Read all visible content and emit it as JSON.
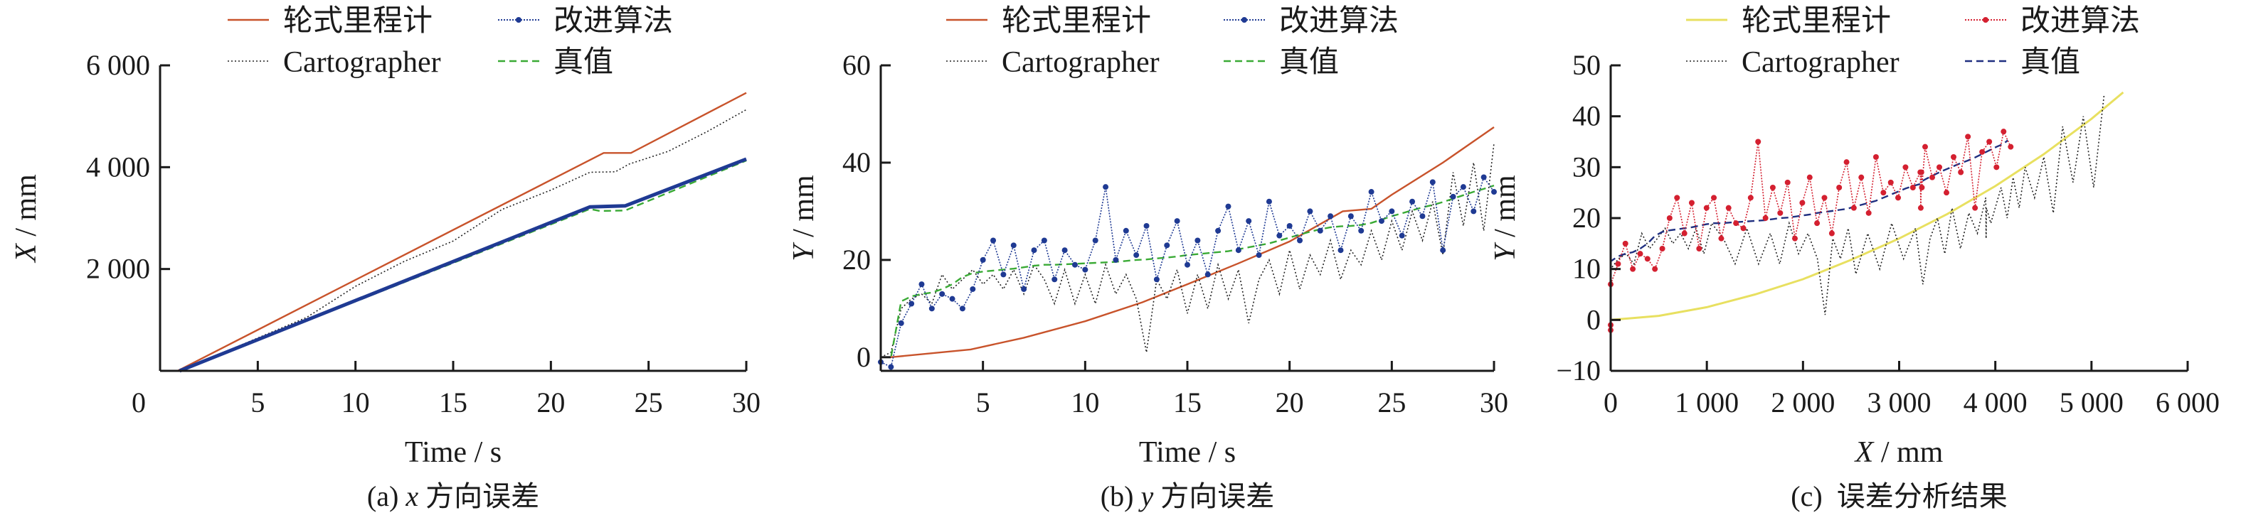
{
  "colors": {
    "odometry": "#c8532b",
    "odometry_c": "#e8e060",
    "improved": "#1f3a93",
    "improved_c": "#d42030",
    "cartographer": "#222222",
    "truth": "#3aaa35",
    "truth_c": "#1f2f80",
    "axis": "#1a1a1a"
  },
  "legend_labels": {
    "odometry": "轮式里程计",
    "improved": "改进算法",
    "cartographer": "Cartographer",
    "truth": "真值"
  },
  "chart_data": [
    {
      "id": "a",
      "type": "line",
      "caption_prefix": "(a)",
      "caption_var": "x",
      "caption_text": "方向误差",
      "xlabel": "Time / s",
      "ylabel_var": "X",
      "ylabel_unit": " / mm",
      "xlim": [
        0,
        30
      ],
      "ylim": [
        0,
        6000
      ],
      "grid": false,
      "legend": "top",
      "xticks": [
        {
          "v": 0,
          "label": "0"
        },
        {
          "v": 5,
          "label": "5"
        },
        {
          "v": 10,
          "label": "10"
        },
        {
          "v": 15,
          "label": "15"
        },
        {
          "v": 20,
          "label": "20"
        },
        {
          "v": 25,
          "label": "25"
        },
        {
          "v": 30,
          "label": "30"
        }
      ],
      "yticks": [
        {
          "v": 2000,
          "label": "2 000"
        },
        {
          "v": 4000,
          "label": "4 000"
        },
        {
          "v": 6000,
          "label": "6 000"
        }
      ],
      "series": [
        {
          "key": "odometry",
          "x": [
            0.9,
            22.7,
            24.1,
            30
          ],
          "y": [
            0,
            4280,
            4280,
            5460
          ]
        },
        {
          "key": "cartographer",
          "x": [
            1,
            7.5,
            10,
            12.5,
            15,
            17.5,
            20,
            22,
            23.3,
            24,
            26,
            28,
            30
          ],
          "y": [
            0,
            1050,
            1660,
            2150,
            2550,
            3170,
            3550,
            3900,
            3910,
            4060,
            4310,
            4700,
            5130
          ]
        },
        {
          "key": "truth",
          "x": [
            1,
            22,
            22.5,
            23.8,
            30
          ],
          "y": [
            0,
            3180,
            3140,
            3150,
            4130
          ]
        },
        {
          "key": "improved",
          "x": [
            1,
            22,
            23.8,
            30
          ],
          "y": [
            0,
            3220,
            3240,
            4160
          ]
        }
      ]
    },
    {
      "id": "b",
      "type": "line",
      "caption_prefix": "(b)",
      "caption_var": "y",
      "caption_text": "方向误差",
      "xlabel": "Time / s",
      "ylabel_var": "Y",
      "ylabel_unit": " / mm",
      "xlim": [
        0,
        30
      ],
      "ylim": [
        -2.8,
        60
      ],
      "grid": false,
      "legend": "top",
      "xticks": [
        {
          "v": 5,
          "label": "5"
        },
        {
          "v": 10,
          "label": "10"
        },
        {
          "v": 15,
          "label": "15"
        },
        {
          "v": 20,
          "label": "20"
        },
        {
          "v": 25,
          "label": "25"
        },
        {
          "v": 30,
          "label": "30"
        }
      ],
      "yticks": [
        {
          "v": 0,
          "label": "0"
        },
        {
          "v": 20,
          "label": "20"
        },
        {
          "v": 40,
          "label": "40"
        },
        {
          "v": 60,
          "label": "60"
        }
      ],
      "series": [
        {
          "key": "odometry",
          "x": [
            0,
            0.5,
            4.4,
            7,
            10,
            12.8,
            15,
            17.5,
            20,
            22.6,
            24,
            25,
            27.5,
            30
          ],
          "y": [
            0,
            0,
            1.6,
            4,
            7.4,
            11.3,
            15,
            19.3,
            23.8,
            30,
            30.5,
            33.4,
            40,
            47.3
          ]
        },
        {
          "key": "cartographer",
          "x": [
            0,
            0.5,
            1,
            1.5,
            2,
            2.5,
            3,
            3.5,
            4,
            4.5,
            5,
            5.5,
            6,
            6.5,
            7,
            7.5,
            8,
            8.5,
            9,
            9.5,
            10,
            10.5,
            11,
            11.5,
            12,
            12.5,
            13,
            13.5,
            14,
            14.5,
            15,
            15.5,
            16,
            16.5,
            17,
            17.5,
            18,
            18.5,
            19,
            19.5,
            20,
            20.5,
            21,
            21.5,
            22,
            22.5,
            23,
            23.5,
            24,
            24.5,
            25,
            25.5,
            26,
            26.5,
            27,
            27.5,
            28,
            28.5,
            29,
            29.5,
            30
          ],
          "y": [
            0,
            1,
            10,
            12,
            13,
            11,
            17,
            14,
            16,
            18,
            15,
            17,
            14,
            18,
            13,
            19,
            16,
            11,
            18,
            11,
            17,
            11,
            19,
            13,
            17,
            12,
            1,
            16,
            12,
            18,
            9,
            17,
            10,
            19,
            12,
            18,
            7,
            16,
            20,
            13,
            22,
            14,
            21,
            17,
            24,
            16,
            22,
            19,
            26,
            20,
            28,
            22,
            30,
            24,
            32,
            21,
            38,
            27,
            40,
            26,
            44
          ]
        },
        {
          "key": "truth",
          "x": [
            0,
            0.5,
            1,
            1.5,
            2,
            2.5,
            3,
            3.5,
            4,
            4.5,
            5,
            5.5,
            6,
            6.5,
            7,
            7.5,
            8,
            8.5,
            9,
            9.5,
            10,
            10.5,
            11,
            11.5,
            12,
            12.5,
            13,
            13.5,
            14,
            14.5,
            15,
            15.5,
            16,
            16.5,
            17,
            17.5,
            18,
            18.5,
            19,
            19.5,
            20,
            20.5,
            21,
            21.5,
            22,
            22.5,
            23,
            23.5,
            24,
            24.5,
            25,
            25.5,
            26,
            26.5,
            27,
            27.5,
            28,
            28.5,
            29,
            29.5,
            30
          ],
          "y": [
            0,
            0,
            11.5,
            12.5,
            13,
            13.3,
            14,
            15,
            16.5,
            17.3,
            17.6,
            17.8,
            18,
            18.2,
            18.5,
            18.8,
            19,
            19,
            19.1,
            19.2,
            19.3,
            19.4,
            19.5,
            19.6,
            19.8,
            20,
            20.1,
            20.3,
            20.5,
            20.7,
            21,
            21.2,
            21.4,
            21.6,
            21.8,
            22.2,
            22.6,
            23,
            23.4,
            24,
            24.6,
            25.2,
            25.8,
            26.3,
            26.7,
            26.9,
            27,
            27.2,
            27.6,
            28.3,
            29,
            29.6,
            30.2,
            30.8,
            31.3,
            31.9,
            32.6,
            33.3,
            34,
            34.6,
            35.3
          ]
        },
        {
          "key": "improved",
          "markers": true,
          "x": [
            0,
            0.5,
            1,
            1.5,
            2,
            2.5,
            3,
            3.5,
            4,
            4.5,
            5,
            5.5,
            6,
            6.5,
            7,
            7.5,
            8,
            8.5,
            9,
            9.5,
            10,
            10.5,
            11,
            11.5,
            12,
            12.5,
            13,
            13.5,
            14,
            14.5,
            15,
            15.5,
            16,
            16.5,
            17,
            17.5,
            18,
            18.5,
            19,
            19.5,
            20,
            20.5,
            21,
            21.5,
            22,
            22.5,
            23,
            23.5,
            24,
            24.5,
            25,
            25.5,
            26,
            26.5,
            27,
            27.5,
            28,
            28.5,
            29,
            29.5,
            30
          ],
          "y": [
            -1,
            -2,
            7,
            11,
            15,
            10,
            13,
            12,
            10,
            14,
            20,
            24,
            17,
            23,
            14,
            22,
            24,
            16,
            22,
            19,
            18,
            24,
            35,
            20,
            26,
            21,
            27,
            16,
            23,
            28,
            19,
            24,
            17,
            26,
            31,
            22,
            28,
            21,
            32,
            25,
            27,
            24,
            30,
            26,
            29,
            22,
            29,
            26,
            34,
            28,
            30,
            25,
            32,
            29,
            36,
            22,
            33,
            35,
            30,
            37,
            34
          ]
        }
      ]
    },
    {
      "id": "c",
      "type": "line",
      "caption_prefix": "(c)",
      "caption_var": "",
      "caption_text": "误差分析结果",
      "xlabel_var": "X",
      "xlabel": " / mm",
      "ylabel_var": "Y",
      "ylabel_unit": " / mm",
      "xlim": [
        0,
        6000
      ],
      "ylim": [
        -10,
        50
      ],
      "grid": false,
      "legend": "top",
      "xticks": [
        {
          "v": 0,
          "label": "0"
        },
        {
          "v": 1000,
          "label": "1 000"
        },
        {
          "v": 2000,
          "label": "2 000"
        },
        {
          "v": 3000,
          "label": "3 000"
        },
        {
          "v": 4000,
          "label": "4 000"
        },
        {
          "v": 5000,
          "label": "5 000"
        },
        {
          "v": 6000,
          "label": "6 000"
        }
      ],
      "yticks": [
        {
          "v": -10,
          "label": "−10"
        },
        {
          "v": 0,
          "label": "0"
        },
        {
          "v": 10,
          "label": "10"
        },
        {
          "v": 20,
          "label": "20"
        },
        {
          "v": 30,
          "label": "30"
        },
        {
          "v": 40,
          "label": "40"
        },
        {
          "v": 50,
          "label": "50"
        }
      ],
      "series": [
        {
          "key": "odometry",
          "x": [
            0,
            500,
            1000,
            1500,
            2000,
            2500,
            3000,
            3500,
            4000,
            4500,
            5000,
            5330
          ],
          "y": [
            0,
            0.8,
            2.5,
            5,
            8,
            11.8,
            16,
            20.8,
            26.3,
            32.5,
            39.5,
            44.7
          ]
        },
        {
          "key": "cartographer",
          "x": [
            0,
            0,
            0,
            81,
            162,
            242,
            323,
            404,
            485,
            565,
            646,
            727,
            808,
            888,
            969,
            1050,
            1172,
            1294,
            1416,
            1538,
            1660,
            1758,
            1856,
            1954,
            2052,
            2150,
            2230,
            2310,
            2390,
            2470,
            2550,
            2674,
            2798,
            2922,
            3046,
            3170,
            3246,
            3322,
            3398,
            3474,
            3550,
            3638,
            3725,
            3813,
            3900,
            3904,
            3908,
            3953,
            4060,
            4123,
            4185,
            4248,
            4310,
            4408,
            4505,
            4603,
            4700,
            4808,
            4915,
            5023,
            5130
          ],
          "y": [
            0,
            1,
            10,
            12,
            13,
            11,
            17,
            14,
            16,
            18,
            15,
            17,
            14,
            18,
            13,
            19,
            16,
            11,
            18,
            11,
            17,
            11,
            19,
            13,
            17,
            12,
            1,
            16,
            12,
            18,
            9,
            17,
            10,
            19,
            12,
            18,
            7,
            16,
            20,
            13,
            22,
            14,
            21,
            17,
            24,
            16,
            22,
            19,
            26,
            20,
            28,
            22,
            30,
            24,
            32,
            21,
            38,
            27,
            40,
            26,
            44
          ]
        },
        {
          "key": "truth",
          "x": [
            0,
            0,
            0,
            77,
            153,
            230,
            307,
            383,
            460,
            537,
            613,
            690,
            767,
            843,
            920,
            997,
            1073,
            1150,
            1226,
            1303,
            1380,
            1456,
            1533,
            1610,
            1686,
            1763,
            1840,
            1916,
            1993,
            2070,
            2146,
            2223,
            2300,
            2376,
            2453,
            2529,
            2606,
            2683,
            2759,
            2836,
            2913,
            2989,
            3066,
            3143,
            3220,
            3225,
            3231,
            3236,
            3270,
            3344,
            3418,
            3492,
            3566,
            3641,
            3715,
            3789,
            3863,
            3937,
            4012,
            4086,
            4130
          ],
          "y": [
            0,
            0,
            11.5,
            12.5,
            13,
            13.3,
            14,
            15,
            16.5,
            17.3,
            17.6,
            17.8,
            18,
            18.2,
            18.5,
            18.8,
            19,
            19,
            19.1,
            19.2,
            19.3,
            19.4,
            19.5,
            19.6,
            19.8,
            20,
            20.1,
            20.3,
            20.5,
            20.7,
            21,
            21.2,
            21.4,
            21.6,
            21.8,
            22.2,
            22.6,
            23,
            23.4,
            24,
            24.6,
            25.2,
            25.8,
            26.3,
            26.7,
            26.9,
            27,
            27.2,
            27.6,
            28.3,
            29,
            29.6,
            30.2,
            30.8,
            31.3,
            31.9,
            32.6,
            33.3,
            34,
            34.6,
            35.3
          ]
        },
        {
          "key": "improved",
          "markers": true,
          "x": [
            0,
            0,
            0,
            77,
            153,
            230,
            307,
            383,
            460,
            537,
            613,
            690,
            767,
            843,
            920,
            997,
            1073,
            1150,
            1226,
            1303,
            1380,
            1456,
            1533,
            1610,
            1686,
            1763,
            1840,
            1916,
            1993,
            2070,
            2146,
            2223,
            2300,
            2376,
            2453,
            2529,
            2606,
            2683,
            2759,
            2836,
            2913,
            2989,
            3066,
            3143,
            3220,
            3225,
            3231,
            3236,
            3270,
            3344,
            3418,
            3492,
            3566,
            3641,
            3715,
            3789,
            3863,
            3937,
            4012,
            4086,
            4160
          ],
          "y": [
            -1,
            -2,
            7,
            11,
            15,
            10,
            13,
            12,
            10,
            14,
            20,
            24,
            17,
            23,
            14,
            22,
            24,
            16,
            22,
            19,
            18,
            24,
            35,
            20,
            26,
            21,
            27,
            16,
            23,
            28,
            19,
            24,
            17,
            26,
            31,
            22,
            28,
            21,
            32,
            25,
            27,
            24,
            30,
            26,
            29,
            22,
            29,
            26,
            34,
            28,
            30,
            25,
            32,
            29,
            36,
            22,
            33,
            35,
            30,
            37,
            34
          ]
        }
      ]
    }
  ]
}
